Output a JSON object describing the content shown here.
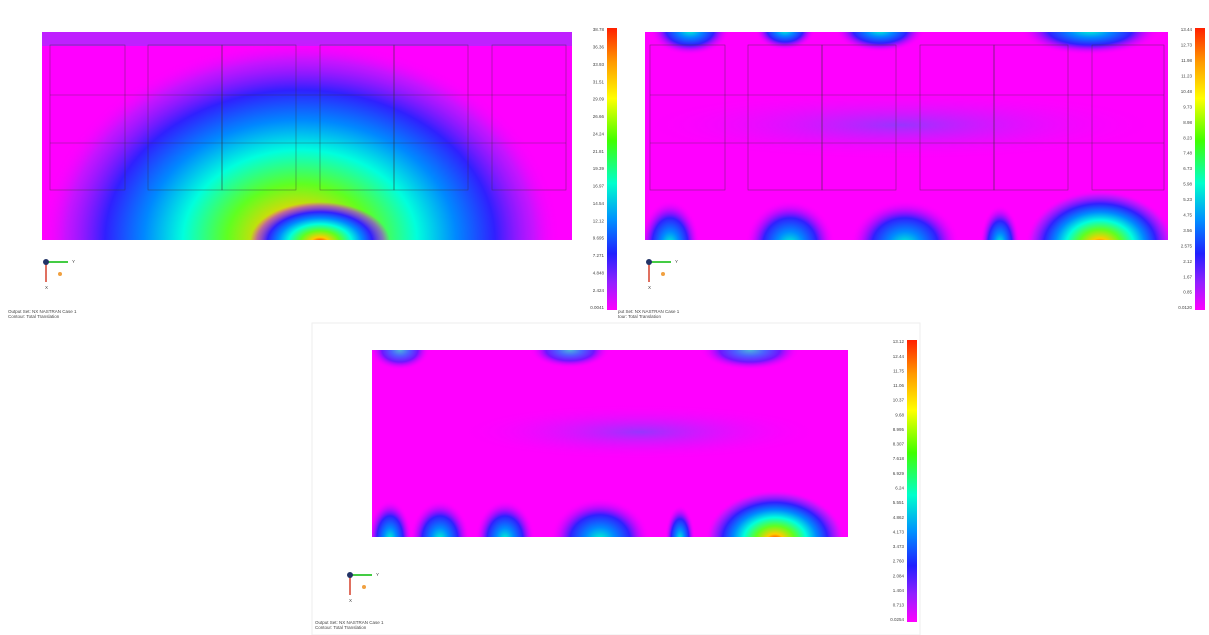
{
  "panels": [
    {
      "output_set": "Output Set: NX NASTRAN Case 1",
      "contour": "Contour: Total Translation",
      "axis_y": "Y",
      "axis_x": "X",
      "legend": [
        "38.78",
        "36.36",
        "33.93",
        "31.51",
        "29.09",
        "26.66",
        "24.24",
        "21.81",
        "19.39",
        "16.97",
        "14.54",
        "12.12",
        "9.695",
        "7.271",
        "4.848",
        "2.424",
        "0.0041"
      ]
    },
    {
      "output_set": "put Set: NX NASTRAN Case 1",
      "contour": "tour: Total Translation",
      "axis_y": "Y",
      "axis_x": "X",
      "legend": [
        "13.44",
        "12.73",
        "11.98",
        "11.23",
        "10.48",
        "9.73",
        "8.98",
        "8.23",
        "7.48",
        "6.73",
        "5.98",
        "5.23",
        "4.75",
        "3.56",
        "2.575",
        "2.12",
        "1.67",
        "0.85",
        "0.0120"
      ]
    },
    {
      "output_set": "Output Set: NX NASTRAN Case 1",
      "contour": "Contour: Total Translation",
      "axis_y": "Y",
      "axis_x": "X",
      "legend": [
        "13.12",
        "12.44",
        "11.75",
        "11.06",
        "10.37",
        "9.68",
        "8.995",
        "8.307",
        "7.618",
        "6.929",
        "6.24",
        "5.551",
        "4.862",
        "4.173",
        "3.473",
        "2.760",
        "2.084",
        "1.404",
        "0.713",
        "0.0254"
      ]
    }
  ]
}
